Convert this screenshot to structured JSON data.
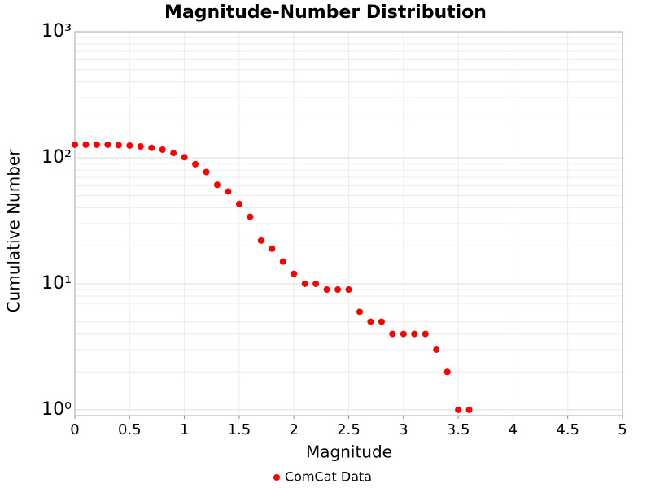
{
  "chart_data": {
    "type": "scatter",
    "title": "Magnitude-Number Distribution",
    "x_label": "Magnitude",
    "y_label": "Cumulative Number",
    "y_log": true,
    "grid": true,
    "legend": "bottom",
    "xlim": [
      0,
      5
    ],
    "xticks": [
      0,
      0.5,
      1,
      1.5,
      2,
      2.5,
      3,
      3.5,
      4,
      4.5,
      5
    ],
    "ylim": [
      0.9,
      1000
    ],
    "yticks": [
      {
        "value": 1,
        "label": "10⁰"
      },
      {
        "value": 10,
        "label": "10¹"
      },
      {
        "value": 100,
        "label": "10²"
      },
      {
        "value": 1000,
        "label": "10³"
      }
    ],
    "y_minor_ticks": [
      2,
      3,
      4,
      5,
      6,
      7,
      8,
      9,
      20,
      30,
      40,
      50,
      60,
      70,
      80,
      90,
      200,
      300,
      400,
      500,
      600,
      700,
      800,
      900
    ],
    "series": [
      {
        "name": "ComCat Data",
        "color": "#ff0000",
        "x": [
          0,
          0.1,
          0.2,
          0.3,
          0.4,
          0.5,
          0.6,
          0.7,
          0.8,
          0.9,
          1.0,
          1.1,
          1.2,
          1.3,
          1.4,
          1.5,
          1.6,
          1.7,
          1.8,
          1.9,
          2.0,
          2.1,
          2.2,
          2.3,
          2.4,
          2.5,
          2.6,
          2.7,
          2.8,
          2.9,
          3.0,
          3.1,
          3.2,
          3.3,
          3.4,
          3.5,
          3.6
        ],
        "values": [
          127,
          127,
          127,
          127,
          126,
          125,
          123,
          120,
          116,
          109,
          101,
          89,
          77,
          61,
          54,
          43,
          34,
          22,
          19,
          15,
          12,
          10,
          10,
          9,
          9,
          9,
          6,
          5,
          5,
          4,
          4,
          4,
          4,
          3,
          2,
          1,
          1
        ]
      }
    ]
  }
}
